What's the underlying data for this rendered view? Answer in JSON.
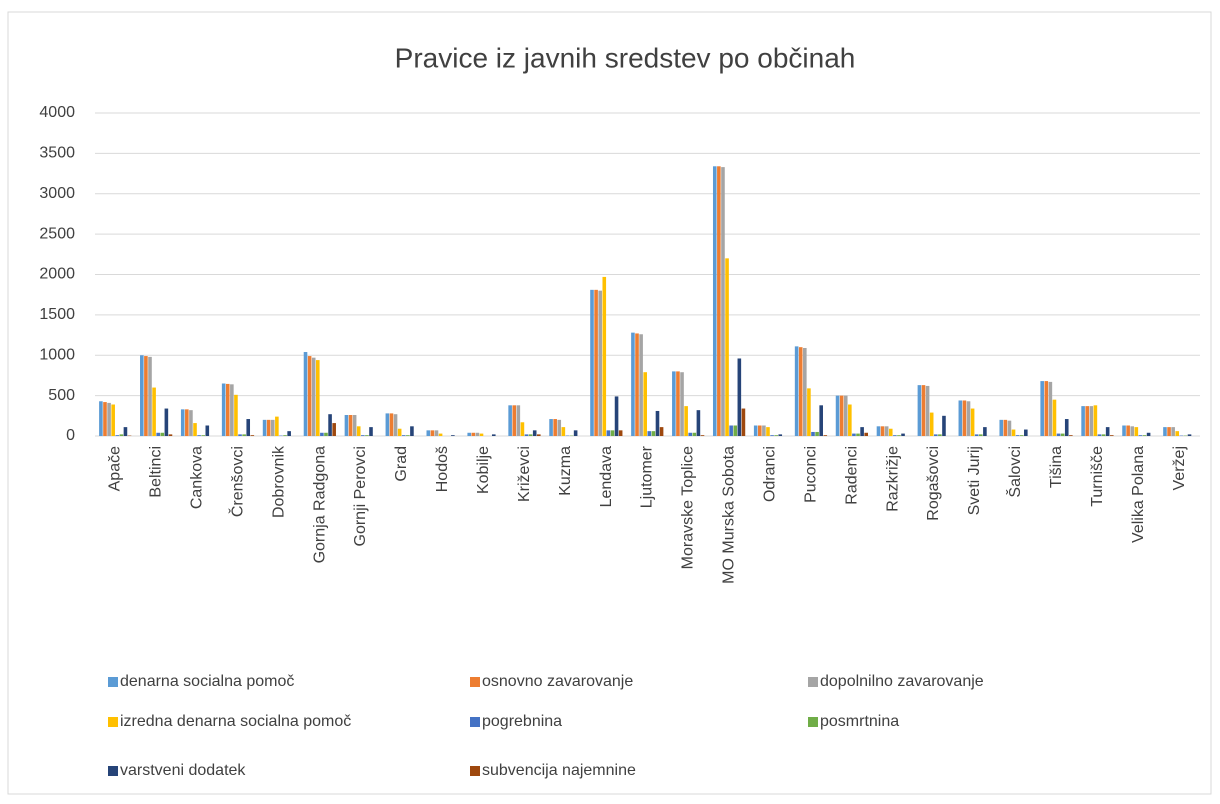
{
  "chart_data": {
    "type": "bar",
    "title": "Pravice iz javnih sredstev po občinah",
    "categories": [
      "Apače",
      "Beltinci",
      "Cankova",
      "Črenšovci",
      "Dobrovnik",
      "Gornja Radgona",
      "Gornji Perovci",
      "Grad",
      "Hodoš",
      "Kobilje",
      "Križevci",
      "Kuzma",
      "Lendava",
      "Ljutomer",
      "Moravske Toplice",
      "MO Murska Sobota",
      "Odranci",
      "Puconci",
      "Radenci",
      "Razkrižje",
      "Rogašovci",
      "Sveti Jurij",
      "Šalovci",
      "Tišina",
      "Turnišče",
      "Velika Polana",
      "Veržej"
    ],
    "series": [
      {
        "name": "denarna socialna pomoč",
        "color": "#5b9bd5",
        "values": [
          430,
          1000,
          330,
          650,
          200,
          1040,
          260,
          280,
          70,
          40,
          380,
          210,
          1810,
          1280,
          800,
          3340,
          130,
          1110,
          500,
          120,
          630,
          440,
          200,
          680,
          370,
          130,
          110
        ]
      },
      {
        "name": "osnovno zavarovanje",
        "color": "#ed7d31",
        "values": [
          420,
          990,
          330,
          645,
          200,
          990,
          260,
          280,
          70,
          40,
          380,
          210,
          1810,
          1270,
          800,
          3340,
          130,
          1100,
          500,
          120,
          630,
          440,
          200,
          680,
          370,
          130,
          110
        ]
      },
      {
        "name": "dopolnilno zavarovanje",
        "color": "#a5a5a5",
        "values": [
          410,
          980,
          320,
          640,
          200,
          970,
          260,
          270,
          70,
          40,
          380,
          200,
          1800,
          1260,
          790,
          3330,
          130,
          1090,
          500,
          120,
          620,
          430,
          190,
          670,
          370,
          120,
          110
        ]
      },
      {
        "name": "izredna denarna socialna pomoč",
        "color": "#ffc000",
        "values": [
          390,
          600,
          160,
          510,
          240,
          940,
          120,
          90,
          30,
          30,
          170,
          110,
          1970,
          790,
          370,
          2200,
          110,
          590,
          390,
          90,
          290,
          340,
          80,
          450,
          380,
          110,
          60
        ]
      },
      {
        "name": "pogrebnina",
        "color": "#4472c4",
        "values": [
          10,
          40,
          10,
          20,
          5,
          40,
          10,
          10,
          0,
          0,
          20,
          5,
          70,
          60,
          40,
          130,
          10,
          50,
          30,
          10,
          20,
          20,
          10,
          30,
          20,
          10,
          5
        ]
      },
      {
        "name": "posmrtnina",
        "color": "#70ad47",
        "values": [
          20,
          40,
          10,
          20,
          10,
          40,
          10,
          10,
          0,
          0,
          20,
          5,
          70,
          60,
          40,
          130,
          10,
          50,
          30,
          10,
          20,
          20,
          10,
          30,
          20,
          10,
          5
        ]
      },
      {
        "name": "varstveni dodatek",
        "color": "#264478",
        "values": [
          110,
          340,
          130,
          210,
          60,
          270,
          110,
          120,
          10,
          20,
          70,
          70,
          490,
          310,
          320,
          960,
          20,
          380,
          110,
          30,
          250,
          110,
          80,
          210,
          110,
          40,
          20
        ]
      },
      {
        "name": "subvencija najemnine",
        "color": "#9e480e",
        "values": [
          5,
          20,
          0,
          10,
          0,
          160,
          0,
          0,
          0,
          0,
          20,
          0,
          70,
          110,
          10,
          340,
          0,
          10,
          40,
          0,
          0,
          0,
          0,
          10,
          10,
          0,
          0
        ]
      }
    ],
    "ylim": [
      0,
      4000
    ],
    "yticks": [
      0,
      500,
      1000,
      1500,
      2000,
      2500,
      3000,
      3500,
      4000
    ],
    "grid": true,
    "legend": "bottom"
  }
}
